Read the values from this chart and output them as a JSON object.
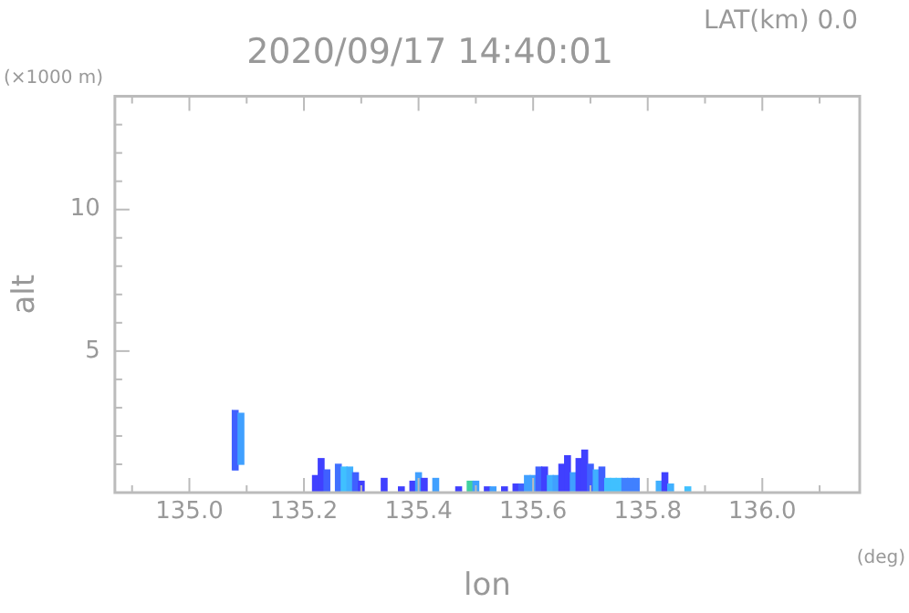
{
  "chart_data": {
    "type": "bar",
    "title": "2020/09/17 14:40:01",
    "xlabel": "lon",
    "ylabel": "alt",
    "annotations": [
      "LAT(km) 0.0",
      "(×1000 m)",
      "(deg)"
    ],
    "x": [
      135.08,
      135.09,
      135.22,
      135.23,
      135.24,
      135.26,
      135.27,
      135.28,
      135.29,
      135.3,
      135.34,
      135.37,
      135.39,
      135.4,
      135.41,
      135.43,
      135.47,
      135.49,
      135.5,
      135.52,
      135.53,
      135.55,
      135.57,
      135.58,
      135.59,
      135.6,
      135.61,
      135.62,
      135.63,
      135.64,
      135.65,
      135.66,
      135.67,
      135.68,
      135.69,
      135.7,
      135.71,
      135.72,
      135.73,
      135.74,
      135.75,
      135.76,
      135.77,
      135.78,
      135.82,
      135.83,
      135.84,
      135.87
    ],
    "base": [
      0.8,
      1.0,
      0,
      0,
      0,
      0,
      0,
      0,
      0,
      0,
      0,
      0,
      0,
      0,
      0,
      0,
      0,
      0,
      0,
      0,
      0,
      0,
      0,
      0,
      0,
      0,
      0,
      0,
      0,
      0,
      0,
      0,
      0,
      0,
      0,
      0,
      0,
      0,
      0,
      0,
      0,
      0,
      0,
      0,
      0,
      0,
      0,
      0
    ],
    "values": [
      2.1,
      1.8,
      0.6,
      1.2,
      0.8,
      1.0,
      0.9,
      0.9,
      0.7,
      0.4,
      0.5,
      0.2,
      0.4,
      0.7,
      0.5,
      0.5,
      0.2,
      0.4,
      0.4,
      0.2,
      0.2,
      0.2,
      0.3,
      0.3,
      0.6,
      0.6,
      0.9,
      0.9,
      0.6,
      0.6,
      1.0,
      1.3,
      0.7,
      1.2,
      1.5,
      1.0,
      0.8,
      0.9,
      0.5,
      0.5,
      0.5,
      0.5,
      0.5,
      0.5,
      0.4,
      0.7,
      0.3,
      0.2
    ],
    "colors": [
      "#4060ff",
      "#40a0ff",
      "#4040ff",
      "#4040ff",
      "#4060ff",
      "#4070ff",
      "#40c0ff",
      "#40b0ff",
      "#4060ff",
      "#4040ff",
      "#4040ff",
      "#4040ff",
      "#4040ff",
      "#40a0ff",
      "#4040ff",
      "#40a0ff",
      "#4040ff",
      "#40d0a0",
      "#40a0ff",
      "#4040ff",
      "#40a0ff",
      "#4040ff",
      "#4040ff",
      "#4060ff",
      "#40a0ff",
      "#40a0ff",
      "#4060ff",
      "#4040ff",
      "#40b0ff",
      "#40a0ff",
      "#4040ff",
      "#4040ff",
      "#40a0ff",
      "#4040ff",
      "#4040ff",
      "#4060ff",
      "#40b0ff",
      "#4060ff",
      "#40c0ff",
      "#40c0ff",
      "#40c0ff",
      "#4080ff",
      "#4080ff",
      "#4080ff",
      "#40b0ff",
      "#4040ff",
      "#40b0ff",
      "#40c0ff"
    ],
    "xlim": [
      134.87,
      136.17
    ],
    "xticks": [
      {
        "value": 134.9,
        "label": null
      },
      {
        "value": 135.0,
        "label": "135.0"
      },
      {
        "value": 135.1,
        "label": null
      },
      {
        "value": 135.2,
        "label": "135.2"
      },
      {
        "value": 135.3,
        "label": null
      },
      {
        "value": 135.4,
        "label": "135.4"
      },
      {
        "value": 135.5,
        "label": null
      },
      {
        "value": 135.6,
        "label": "135.6"
      },
      {
        "value": 135.7,
        "label": null
      },
      {
        "value": 135.8,
        "label": "135.8"
      },
      {
        "value": 135.9,
        "label": null
      },
      {
        "value": 136.0,
        "label": "136.0"
      },
      {
        "value": 136.1,
        "label": null
      }
    ],
    "ylim": [
      0,
      14
    ],
    "yticks": [
      {
        "value": 1,
        "label": null
      },
      {
        "value": 2,
        "label": null
      },
      {
        "value": 3,
        "label": null
      },
      {
        "value": 4,
        "label": null
      },
      5,
      {
        "value": 6,
        "label": null
      },
      {
        "value": 7,
        "label": null
      },
      {
        "value": 8,
        "label": null
      },
      {
        "value": 9,
        "label": null
      },
      10,
      {
        "value": 11,
        "label": null
      },
      {
        "value": 12,
        "label": null
      },
      {
        "value": 13,
        "label": null
      }
    ],
    "grid": false,
    "legend": false
  }
}
